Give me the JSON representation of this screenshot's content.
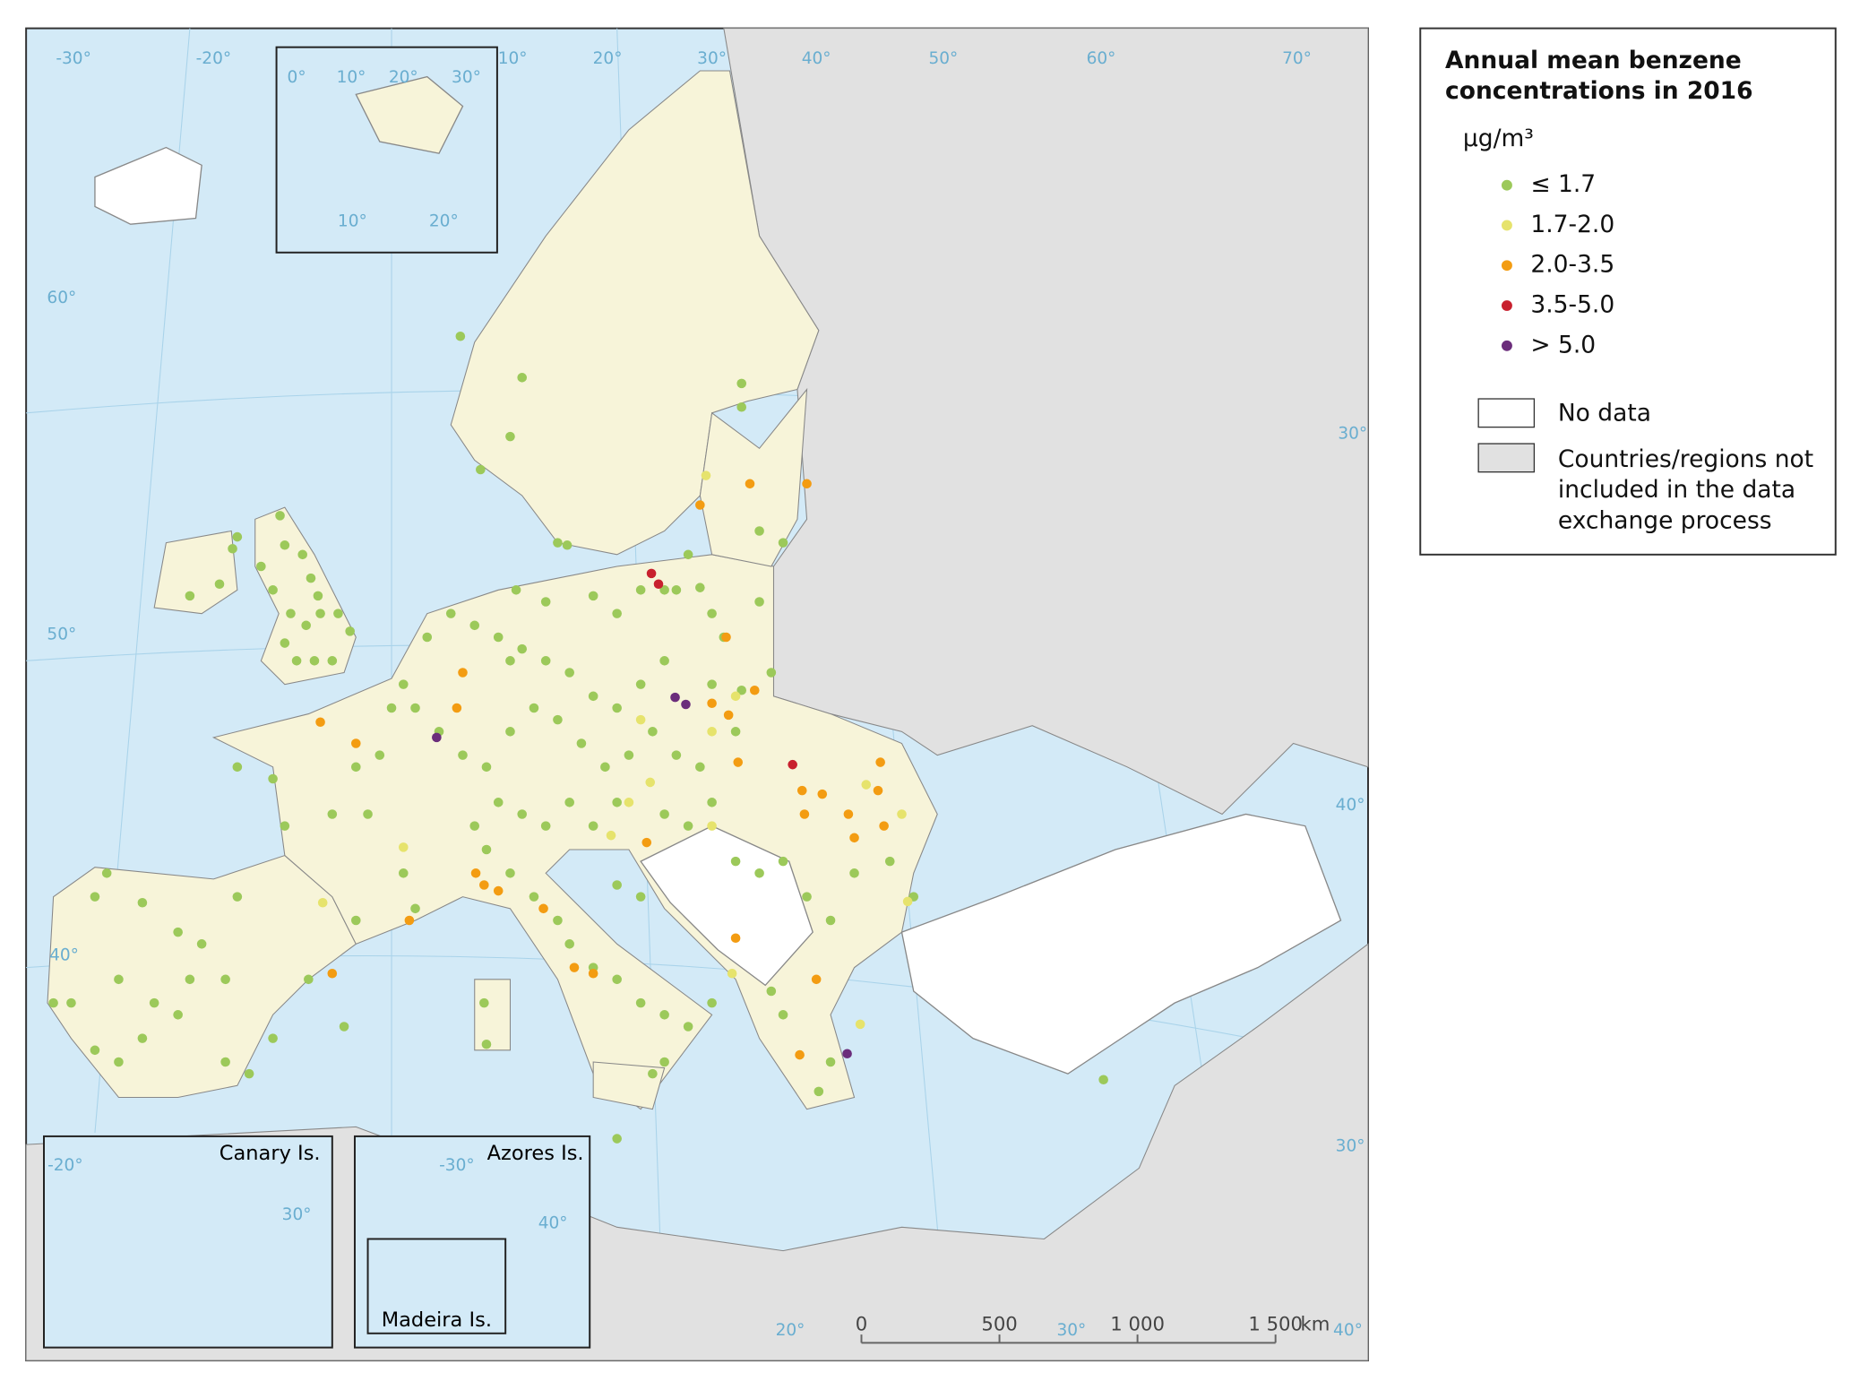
{
  "legend": {
    "title_lines": [
      "Annual mean benzene",
      "concentrations in 2016"
    ],
    "unit": "μg/m³",
    "items": [
      {
        "label": "≤ 1.7",
        "color": "#9cc95a"
      },
      {
        "label": "1.7-2.0",
        "color": "#e6e36c"
      },
      {
        "label": "2.0-3.5",
        "color": "#f39c12"
      },
      {
        "label": "3.5-5.0",
        "color": "#c8202e"
      },
      {
        "label": "> 5.0",
        "color": "#6b2d7b"
      }
    ],
    "no_data": "No data",
    "not_included_lines": [
      "Countries/regions not",
      "included in the data",
      "exchange process"
    ]
  },
  "insets": [
    "Canary Is.",
    "Azores Is.",
    "Madeira Is."
  ],
  "scale_bar": {
    "ticks": [
      0,
      500,
      {
        "value": 1000,
        "label": "1 000"
      },
      {
        "value": 1500,
        "label": "1 500"
      }
    ],
    "unit": "km"
  },
  "graticule_labels": [
    "-30°",
    "-20°",
    "0°",
    "10°",
    "20°",
    "30°",
    "10°",
    "20°",
    "30°",
    "40°",
    "50°",
    "60°",
    "70°",
    "10°",
    "20°",
    "60°",
    "50°",
    "40°",
    "30°",
    "40°",
    "30°",
    "40°",
    "20°",
    "30°",
    "-20°",
    "30°",
    "-30°",
    "40°"
  ]
}
